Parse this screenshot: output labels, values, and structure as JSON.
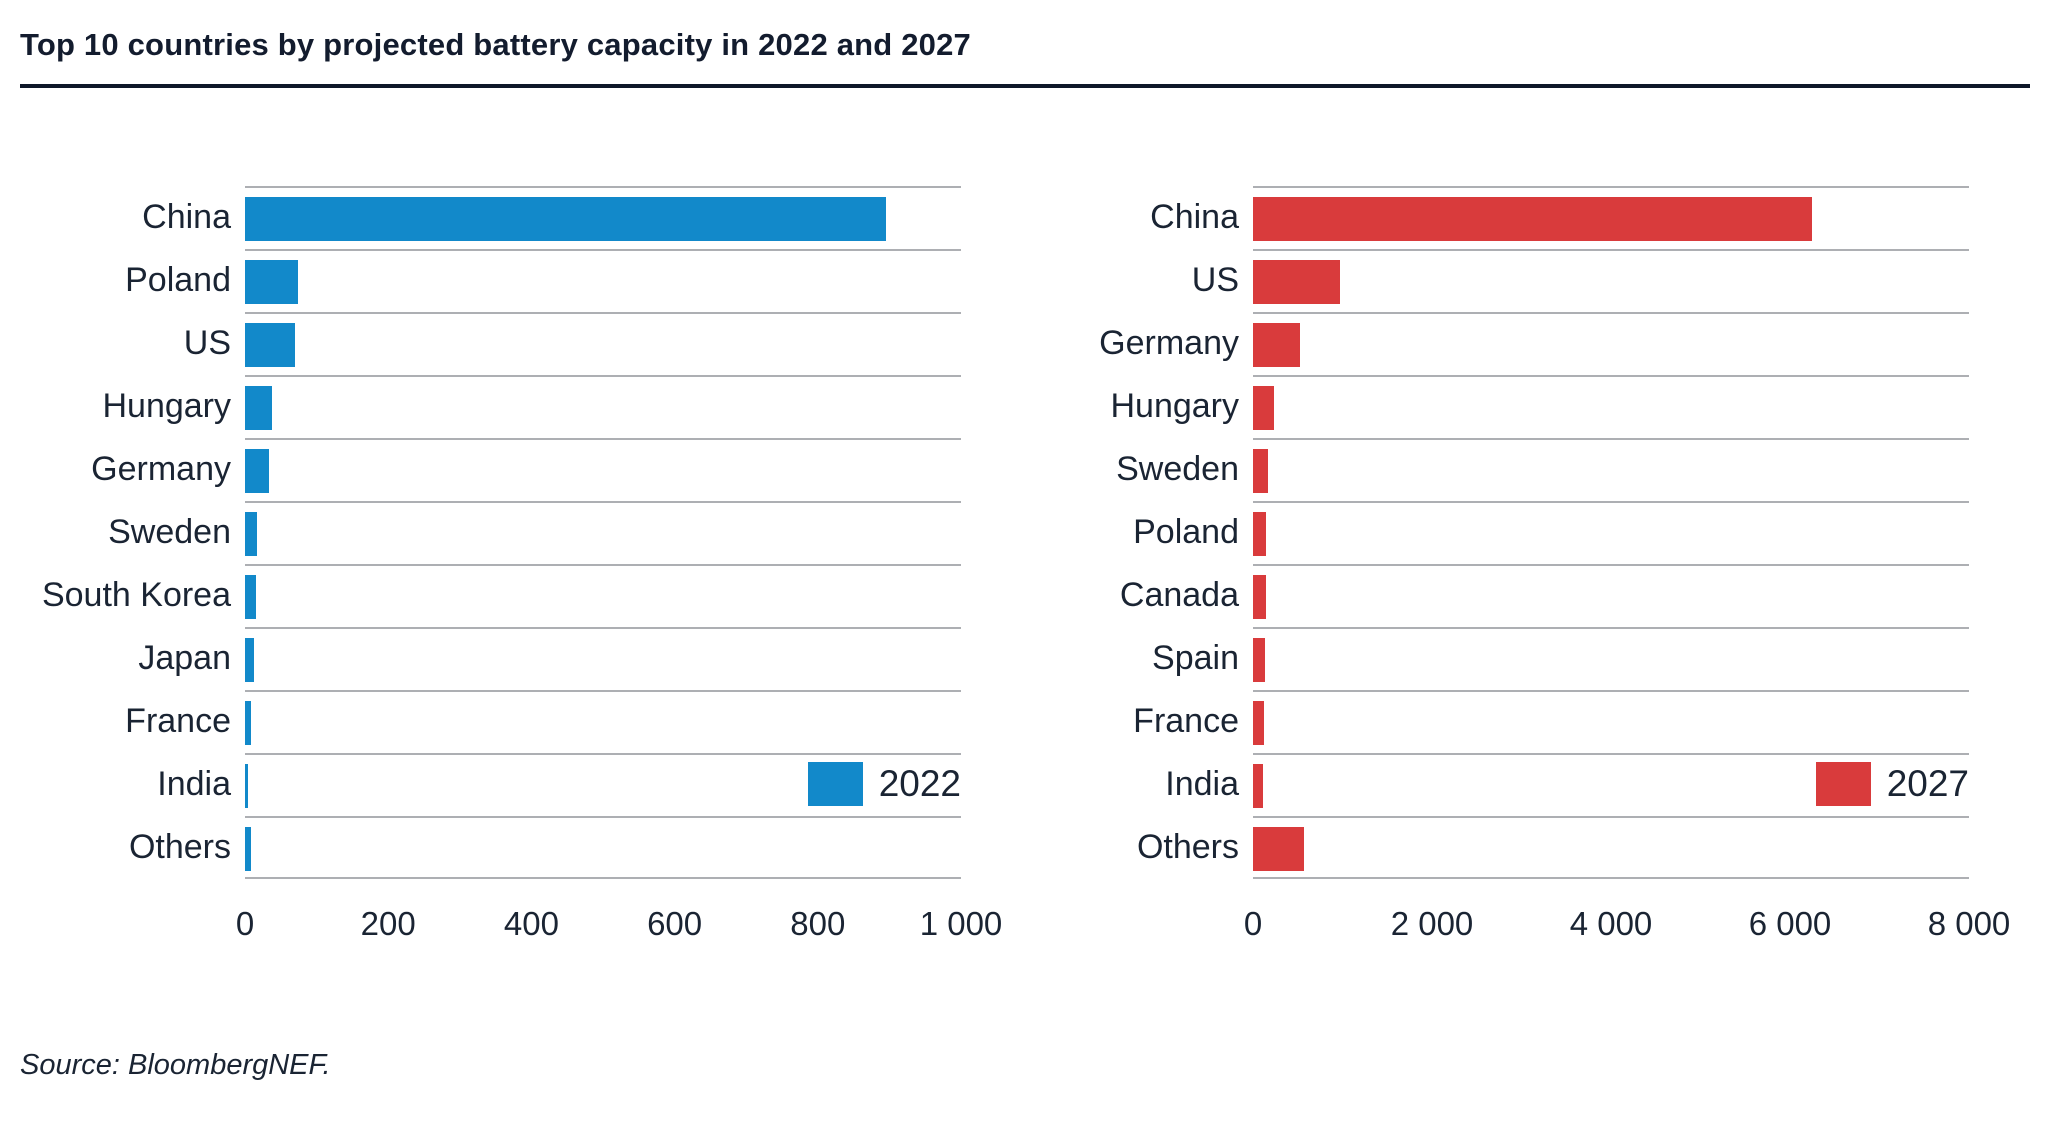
{
  "header": {
    "title": "Top 10 countries by projected battery capacity in 2022 and 2027"
  },
  "footer": {
    "source": "Source: BloombergNEF."
  },
  "colors": {
    "accent_blue": "#1289ca",
    "accent_red": "#d93b3c",
    "text_navy": "#1a2433",
    "rule_navy": "#0e1729",
    "gridline_gray": "#adafb3"
  },
  "chart_data": [
    {
      "type": "bar",
      "orientation": "horizontal",
      "panel": "left",
      "legend": "2022",
      "color": "#1289ca",
      "categories": [
        "China",
        "Poland",
        "US",
        "Hungary",
        "Germany",
        "Sweden",
        "South Korea",
        "Japan",
        "France",
        "India",
        "Others"
      ],
      "values": [
        895,
        74,
        70,
        38,
        33,
        17,
        16,
        13,
        9,
        4,
        8
      ],
      "xlim": [
        0,
        1000
      ],
      "xticks": [
        0,
        200,
        400,
        600,
        800,
        1000
      ],
      "xtick_labels": [
        "0",
        "200",
        "400",
        "600",
        "800",
        "1 000"
      ],
      "grid": "horizontal-row-lines",
      "legend_position": "lower-right-inside"
    },
    {
      "type": "bar",
      "orientation": "horizontal",
      "panel": "right",
      "legend": "2027",
      "color": "#d93b3c",
      "categories": [
        "China",
        "US",
        "Germany",
        "Hungary",
        "Sweden",
        "Poland",
        "Canada",
        "Spain",
        "France",
        "India",
        "Others"
      ],
      "values": [
        6250,
        975,
        525,
        235,
        165,
        150,
        145,
        135,
        125,
        110,
        570
      ],
      "xlim": [
        0,
        8000
      ],
      "xticks": [
        0,
        2000,
        4000,
        6000,
        8000
      ],
      "xtick_labels": [
        "0",
        "2 000",
        "4 000",
        "6 000",
        "8 000"
      ],
      "grid": "horizontal-row-lines",
      "legend_position": "lower-right-inside"
    }
  ]
}
